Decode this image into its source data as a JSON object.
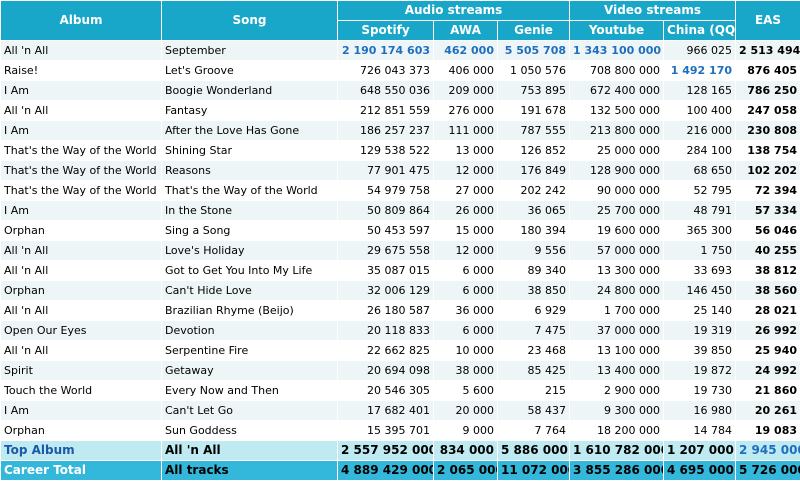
{
  "headers": {
    "album": "Album",
    "song": "Song",
    "audio": "Audio streams",
    "video": "Video streams",
    "eas": "EAS",
    "spotify": "Spotify",
    "awa": "AWA",
    "genie": "Genie",
    "youtube": "Youtube",
    "china": "China (QQ)"
  },
  "rows": [
    {
      "album": "All 'n All",
      "song": "September",
      "spotify": "2 190 174 603",
      "awa": "462 000",
      "genie": "5 505 708",
      "youtube": "1 343 100 000",
      "china": "966 025",
      "eas": "2 513 494",
      "hl": [
        "spotify",
        "awa",
        "genie",
        "youtube"
      ]
    },
    {
      "album": "Raise!",
      "song": "Let's Groove",
      "spotify": "726 043 373",
      "awa": "406 000",
      "genie": "1 050 576",
      "youtube": "708 800 000",
      "china": "1 492 170",
      "eas": "876 405",
      "hl": [
        "china"
      ]
    },
    {
      "album": "I Am",
      "song": "Boogie Wonderland",
      "spotify": "648 550 036",
      "awa": "209 000",
      "genie": "753 895",
      "youtube": "672 400 000",
      "china": "128 165",
      "eas": "786 250",
      "hl": []
    },
    {
      "album": "All 'n All",
      "song": "Fantasy",
      "spotify": "212 851 559",
      "awa": "276 000",
      "genie": "191 678",
      "youtube": "132 500 000",
      "china": "100 400",
      "eas": "247 058",
      "hl": []
    },
    {
      "album": "I Am",
      "song": "After the Love Has Gone",
      "spotify": "186 257 237",
      "awa": "111 000",
      "genie": "787 555",
      "youtube": "213 800 000",
      "china": "216 000",
      "eas": "230 808",
      "hl": []
    },
    {
      "album": "That's the Way of the World",
      "song": "Shining Star",
      "spotify": "129 538 522",
      "awa": "13 000",
      "genie": "126 852",
      "youtube": "25 000 000",
      "china": "284 100",
      "eas": "138 754",
      "hl": []
    },
    {
      "album": "That's the Way of the World",
      "song": "Reasons",
      "spotify": "77 901 475",
      "awa": "12 000",
      "genie": "176 849",
      "youtube": "128 900 000",
      "china": "68 650",
      "eas": "102 202",
      "hl": []
    },
    {
      "album": "That's the Way of the World",
      "song": "That's the Way of the World",
      "spotify": "54 979 758",
      "awa": "27 000",
      "genie": "202 242",
      "youtube": "90 000 000",
      "china": "52 795",
      "eas": "72 394",
      "hl": []
    },
    {
      "album": "I Am",
      "song": "In the Stone",
      "spotify": "50 809 864",
      "awa": "26 000",
      "genie": "36 065",
      "youtube": "25 700 000",
      "china": "48 791",
      "eas": "57 334",
      "hl": []
    },
    {
      "album": "Orphan",
      "song": "Sing a Song",
      "spotify": "50 453 597",
      "awa": "15 000",
      "genie": "180 394",
      "youtube": "19 600 000",
      "china": "365 300",
      "eas": "56 046",
      "hl": []
    },
    {
      "album": "All 'n All",
      "song": "Love's Holiday",
      "spotify": "29 675 558",
      "awa": "12 000",
      "genie": "9 556",
      "youtube": "57 000 000",
      "china": "1 750",
      "eas": "40 255",
      "hl": []
    },
    {
      "album": "All 'n All",
      "song": "Got to Get You Into My Life",
      "spotify": "35 087 015",
      "awa": "6 000",
      "genie": "89 340",
      "youtube": "13 300 000",
      "china": "33 693",
      "eas": "38 812",
      "hl": []
    },
    {
      "album": "Orphan",
      "song": "Can't Hide Love",
      "spotify": "32 006 129",
      "awa": "6 000",
      "genie": "38 850",
      "youtube": "24 800 000",
      "china": "146 450",
      "eas": "38 560",
      "hl": []
    },
    {
      "album": "All 'n All",
      "song": "Brazilian Rhyme (Beijo)",
      "spotify": "26 180 587",
      "awa": "36 000",
      "genie": "6 929",
      "youtube": "1 700 000",
      "china": "25 140",
      "eas": "28 021",
      "hl": []
    },
    {
      "album": "Open Our Eyes",
      "song": "Devotion",
      "spotify": "20 118 833",
      "awa": "6 000",
      "genie": "7 475",
      "youtube": "37 000 000",
      "china": "19 319",
      "eas": "26 992",
      "hl": []
    },
    {
      "album": "All 'n All",
      "song": "Serpentine Fire",
      "spotify": "22 662 825",
      "awa": "10 000",
      "genie": "23 468",
      "youtube": "13 100 000",
      "china": "39 850",
      "eas": "25 940",
      "hl": []
    },
    {
      "album": "Spirit",
      "song": "Getaway",
      "spotify": "20 694 098",
      "awa": "38 000",
      "genie": "85 425",
      "youtube": "13 400 000",
      "china": "19 872",
      "eas": "24 992",
      "hl": []
    },
    {
      "album": "Touch the World",
      "song": "Every Now and Then",
      "spotify": "20 546 305",
      "awa": "5 600",
      "genie": "215",
      "youtube": "2 900 000",
      "china": "19 730",
      "eas": "21 860",
      "hl": []
    },
    {
      "album": "I Am",
      "song": "Can't Let Go",
      "spotify": "17 682 401",
      "awa": "20 000",
      "genie": "58 437",
      "youtube": "9 300 000",
      "china": "16 980",
      "eas": "20 261",
      "hl": []
    },
    {
      "album": "Orphan",
      "song": "Sun Goddess",
      "spotify": "15 395 701",
      "awa": "9 000",
      "genie": "7 764",
      "youtube": "18 200 000",
      "china": "14 784",
      "eas": "19 083",
      "hl": []
    }
  ],
  "top_album": {
    "label": "Top Album",
    "name": "All 'n All",
    "spotify": "2 557 952 000",
    "awa": "834 000",
    "genie": "5 886 000",
    "youtube": "1 610 782 000",
    "china": "1 207 000",
    "eas": "2 945 000"
  },
  "career_total": {
    "label": "Career Total",
    "name": "All tracks",
    "spotify": "4 889 429 000",
    "awa": "2 065 000",
    "genie": "11 072 000",
    "youtube": "3 855 286 000",
    "china": "4 695 000",
    "eas": "5 726 000"
  },
  "colors": {
    "header": "#18a6c9",
    "highlight": "#1e6fbf",
    "top_row": "#bfeaf2",
    "career_row": "#33b8db"
  }
}
